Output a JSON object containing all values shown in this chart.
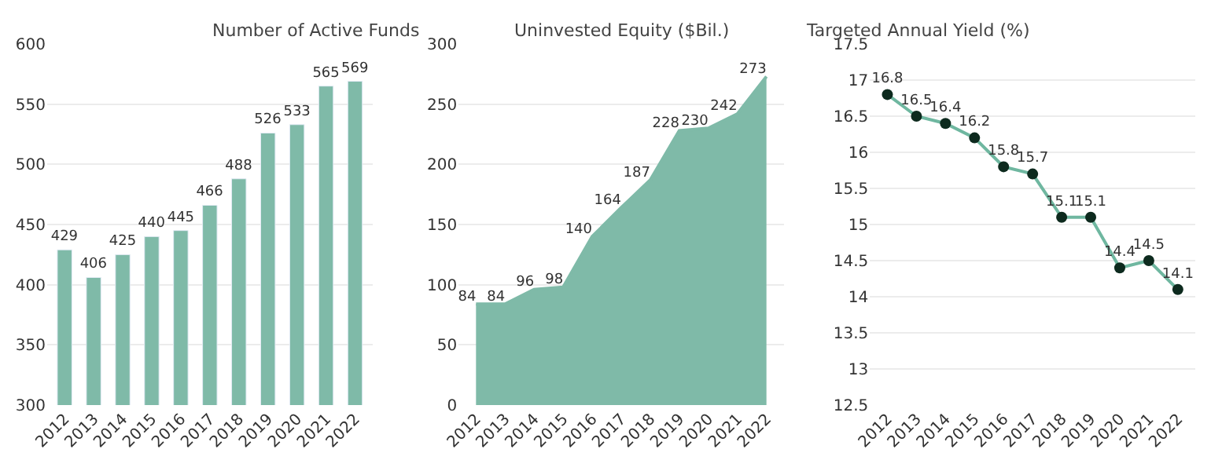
{
  "chart_data": [
    {
      "type": "bar",
      "title": "Number of Active Funds",
      "categories": [
        "2012",
        "2013",
        "2014",
        "2015",
        "2016",
        "2017",
        "2018",
        "2019",
        "2020",
        "2021",
        "2022"
      ],
      "series": [
        {
          "color": "#7fbaa8",
          "values": [
            429,
            406,
            425,
            440,
            445,
            466,
            488,
            526,
            533,
            565,
            569
          ]
        }
      ],
      "ylim": [
        300,
        600
      ],
      "yticks": [
        300,
        350,
        400,
        450,
        500,
        550,
        600
      ],
      "grid": "y",
      "data_labels": true
    },
    {
      "type": "area",
      "title": "Uninvested Equity ($Bil.)",
      "categories": [
        "2012",
        "2013",
        "2014",
        "2015",
        "2016",
        "2017",
        "2018",
        "2019",
        "2020",
        "2021",
        "2022"
      ],
      "series": [
        {
          "color": "#7fbaa8",
          "values": [
            84,
            84,
            96,
            98,
            140,
            164,
            187,
            228,
            230,
            242,
            273
          ]
        }
      ],
      "ylim": [
        0,
        300
      ],
      "yticks": [
        0,
        50,
        100,
        150,
        200,
        250,
        300
      ],
      "grid": "y",
      "data_labels": true
    },
    {
      "type": "line",
      "title": "Targeted Annual Yield (%)",
      "categories": [
        "2012",
        "2013",
        "2014",
        "2015",
        "2016",
        "2017",
        "2018",
        "2019",
        "2020",
        "2021",
        "2022"
      ],
      "series": [
        {
          "color": "#6fb7a0",
          "colors": [
            "#0d2a1e",
            "#0d2a1e",
            "#0d2a1e",
            "#0d2a1e",
            "#0d2a1e",
            "#0d2a1e",
            "#0d2a1e",
            "#0d2a1e",
            "#0d2a1e",
            "#0d2a1e",
            "#0d2a1e"
          ],
          "values": [
            16.8,
            16.5,
            16.4,
            16.2,
            15.8,
            15.7,
            15.1,
            15.1,
            14.4,
            14.5,
            14.1
          ]
        }
      ],
      "ylim": [
        12.5,
        17.5
      ],
      "yticks": [
        12.5,
        13,
        13.5,
        14,
        14.5,
        15,
        15.5,
        16,
        16.5,
        17,
        17.5
      ],
      "grid": "y",
      "marker": "circle",
      "data_labels": true
    }
  ]
}
